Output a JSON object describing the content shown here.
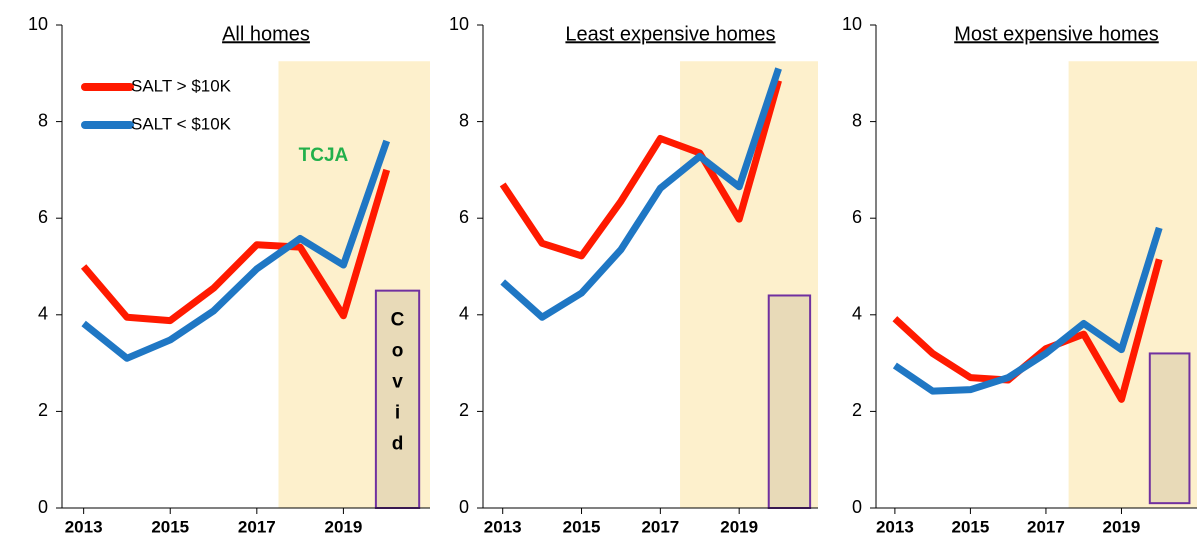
{
  "chart_data": [
    {
      "type": "line",
      "title": "All homes",
      "x": [
        2013,
        2014,
        2015,
        2016,
        2017,
        2018,
        2019,
        2020
      ],
      "xlim": [
        2012.5,
        2021
      ],
      "xticks": [
        2013,
        2015,
        2017,
        2019
      ],
      "ylim": [
        0,
        10
      ],
      "yticks": [
        0,
        2,
        4,
        6,
        8,
        10
      ],
      "series": [
        {
          "name": "SALT > $10K",
          "color": "#ff1a00",
          "values": [
            5.0,
            3.95,
            3.88,
            4.55,
            5.45,
            5.4,
            3.98,
            7.0
          ]
        },
        {
          "name": "SALT < $10K",
          "color": "#1f77c4",
          "values": [
            3.82,
            3.1,
            3.48,
            4.08,
            4.95,
            5.58,
            5.03,
            7.6
          ]
        }
      ],
      "shade": {
        "label": "TCJA",
        "from": 2017.5,
        "to": 2021,
        "top": 9.25,
        "color": "#fdf0cc"
      },
      "box": {
        "label": "Covid",
        "from": 2019.75,
        "to": 2020.75,
        "bottom": 0,
        "top": 4.5,
        "color": "#e8dab8"
      }
    },
    {
      "type": "line",
      "title": "Least expensive homes",
      "x": [
        2013,
        2014,
        2015,
        2016,
        2017,
        2018,
        2019,
        2020
      ],
      "xlim": [
        2012.5,
        2021
      ],
      "xticks": [
        2013,
        2015,
        2017,
        2019
      ],
      "ylim": [
        0,
        10
      ],
      "yticks": [
        0,
        2,
        4,
        6,
        8,
        10
      ],
      "series": [
        {
          "color": "#ff1a00",
          "values": [
            6.7,
            5.48,
            5.22,
            6.35,
            7.65,
            7.35,
            5.98,
            8.85
          ]
        },
        {
          "color": "#1f77c4",
          "values": [
            4.68,
            3.95,
            4.45,
            5.35,
            6.62,
            7.28,
            6.65,
            9.1
          ]
        }
      ],
      "shade": {
        "from": 2017.5,
        "to": 2021,
        "top": 9.25,
        "color": "#fdf0cc"
      },
      "box": {
        "from": 2019.75,
        "to": 2020.8,
        "bottom": 0,
        "top": 4.4,
        "color": "#e8dab8"
      }
    },
    {
      "type": "line",
      "title": "Most expensive homes",
      "x": [
        2013,
        2014,
        2015,
        2016,
        2017,
        2018,
        2019,
        2020
      ],
      "xlim": [
        2012.5,
        2021
      ],
      "xticks": [
        2013,
        2015,
        2017,
        2019
      ],
      "ylim": [
        0,
        10
      ],
      "yticks": [
        0,
        2,
        4,
        6,
        8,
        10
      ],
      "series": [
        {
          "color": "#ff1a00",
          "values": [
            3.92,
            3.2,
            2.7,
            2.65,
            3.3,
            3.6,
            2.25,
            5.15
          ]
        },
        {
          "color": "#1f77c4",
          "values": [
            2.95,
            2.42,
            2.45,
            2.7,
            3.2,
            3.82,
            3.28,
            5.8
          ]
        }
      ],
      "shade": {
        "from": 2017.6,
        "to": 2021,
        "top": 9.25,
        "color": "#fdf0cc"
      },
      "box": {
        "from": 2019.75,
        "to": 2020.8,
        "bottom": 0.1,
        "top": 3.2,
        "color": "#e8dab8"
      }
    }
  ]
}
